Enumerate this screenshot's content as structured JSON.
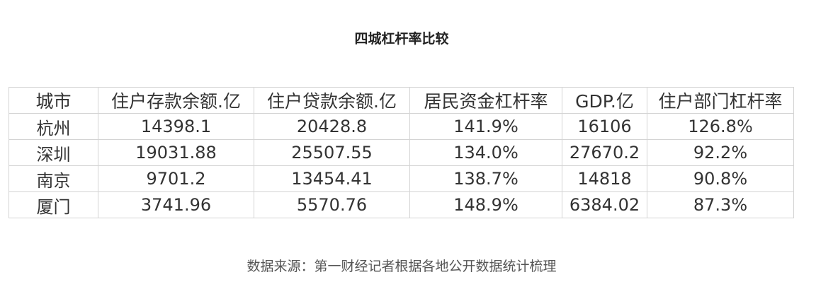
{
  "title": "四城杠杆率比较",
  "table": {
    "headers": [
      "城市",
      "住户存款余额.亿",
      "住户贷款余额.亿",
      "居民资金杠杆率",
      "GDP.亿",
      "住户部门杠杆率"
    ],
    "rows": [
      [
        "杭州",
        "14398.1",
        "20428.8",
        "141.9%",
        "16106",
        "126.8%"
      ],
      [
        "深圳",
        "19031.88",
        "25507.55",
        "134.0%",
        "27670.2",
        "92.2%"
      ],
      [
        "南京",
        "9701.2",
        "13454.41",
        "138.7%",
        "14818",
        "90.8%"
      ],
      [
        "厦门",
        "3741.96",
        "5570.76",
        "148.9%",
        "6384.02",
        "87.3%"
      ]
    ]
  },
  "source": "数据来源：第一财经记者根据各地公开数据统计梳理"
}
